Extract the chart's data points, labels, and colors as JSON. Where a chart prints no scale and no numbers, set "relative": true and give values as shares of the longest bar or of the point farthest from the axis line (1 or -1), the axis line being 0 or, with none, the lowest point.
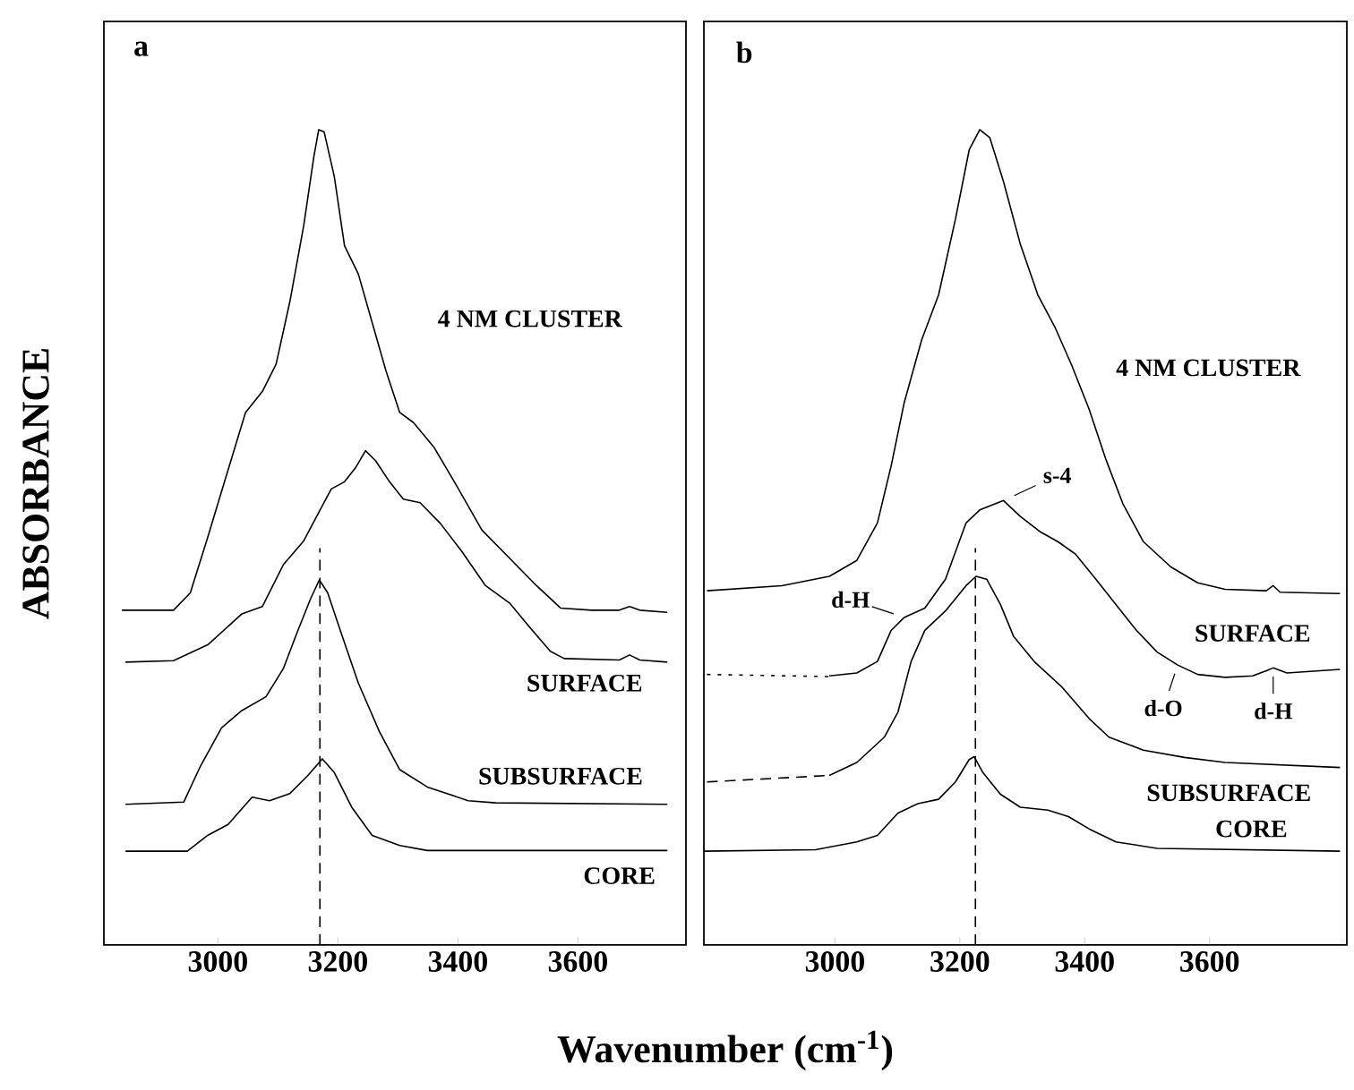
{
  "chart_data": [
    {
      "type": "line",
      "title": "a",
      "xlabel": "Wavenumber (cm$^{-1}$)",
      "ylabel": "ABSORBANCE",
      "relative": true,
      "xlim": [
        2810,
        3780
      ],
      "xticks": [
        3000,
        3200,
        3400,
        3600
      ],
      "ref_lines": [
        {
          "axis": "x",
          "value": 3170,
          "line_style": "dashed"
        }
      ],
      "series": [
        {
          "name": "4 NM CLUSTER",
          "color": "#000000",
          "x": [
            2840,
            2926,
            2954,
            2983,
            3011,
            3046,
            3074,
            3097,
            3120,
            3143,
            3160,
            3168,
            3177,
            3194,
            3211,
            3234,
            3257,
            3280,
            3303,
            3326,
            3360,
            3394,
            3440,
            3486,
            3531,
            3571,
            3623,
            3669,
            3686,
            3703,
            3749
          ],
          "values": [
            0.334,
            0.334,
            0.358,
            0.435,
            0.512,
            0.608,
            0.637,
            0.675,
            0.762,
            0.867,
            0.963,
            1.0,
            0.997,
            0.935,
            0.839,
            0.8,
            0.733,
            0.666,
            0.608,
            0.594,
            0.56,
            0.512,
            0.445,
            0.406,
            0.368,
            0.337,
            0.334,
            0.334,
            0.339,
            0.334,
            0.331
          ]
        },
        {
          "name": "SURFACE",
          "color": "#000000",
          "x": [
            2846,
            2926,
            2983,
            3040,
            3074,
            3109,
            3143,
            3171,
            3189,
            3211,
            3229,
            3246,
            3263,
            3286,
            3309,
            3337,
            3371,
            3406,
            3446,
            3486,
            3520,
            3554,
            3577,
            3669,
            3686,
            3703,
            3749
          ],
          "values": [
            0.262,
            0.264,
            0.286,
            0.329,
            0.339,
            0.397,
            0.43,
            0.474,
            0.502,
            0.512,
            0.531,
            0.555,
            0.541,
            0.512,
            0.488,
            0.483,
            0.454,
            0.416,
            0.368,
            0.344,
            0.31,
            0.277,
            0.267,
            0.265,
            0.272,
            0.265,
            0.262
          ]
        },
        {
          "name": "SUBSURFACE",
          "color": "#000000",
          "x": [
            2846,
            2943,
            2971,
            3006,
            3040,
            3080,
            3109,
            3131,
            3154,
            3169,
            3183,
            3206,
            3234,
            3269,
            3303,
            3349,
            3417,
            3463,
            3749
          ],
          "values": [
            0.065,
            0.068,
            0.118,
            0.171,
            0.195,
            0.214,
            0.253,
            0.301,
            0.349,
            0.376,
            0.358,
            0.301,
            0.233,
            0.166,
            0.113,
            0.089,
            0.07,
            0.067,
            0.065
          ]
        },
        {
          "name": "CORE",
          "color": "#000000",
          "x": [
            2846,
            2949,
            2983,
            3017,
            3057,
            3086,
            3120,
            3149,
            3174,
            3194,
            3223,
            3257,
            3303,
            3349,
            3749
          ],
          "values": [
            0,
            0,
            0.022,
            0.037,
            0.075,
            0.07,
            0.08,
            0.104,
            0.128,
            0.109,
            0.061,
            0.022,
            0.008,
            0.001,
            0.001
          ]
        }
      ]
    },
    {
      "type": "line",
      "title": "b",
      "relative": true,
      "xlim": [
        2790,
        3820
      ],
      "xticks": [
        3000,
        3200,
        3400,
        3600
      ],
      "ref_lines": [
        {
          "axis": "x",
          "value": 3225,
          "line_style": "dashed"
        }
      ],
      "annotations": [
        {
          "text": "s-4",
          "x": 3270,
          "y": 0.486
        },
        {
          "text": "d-H",
          "x": 3111,
          "y": 0.324
        },
        {
          "text": "d-O",
          "x": 3549,
          "y": 0.258
        },
        {
          "text": "d-H",
          "x": 3702,
          "y": 0.254
        }
      ],
      "series": [
        {
          "name": "4 NM CLUSTER",
          "color": "#000000",
          "x": [
            2795,
            2915,
            2991,
            3035,
            3068,
            3090,
            3111,
            3139,
            3166,
            3193,
            3215,
            3232,
            3248,
            3270,
            3297,
            3325,
            3352,
            3379,
            3407,
            3434,
            3461,
            3494,
            3538,
            3581,
            3625,
            3691,
            3702,
            3713,
            3809
          ],
          "values": [
            0.361,
            0.368,
            0.381,
            0.403,
            0.455,
            0.534,
            0.622,
            0.709,
            0.771,
            0.876,
            0.972,
            1.0,
            0.989,
            0.928,
            0.841,
            0.771,
            0.727,
            0.674,
            0.613,
            0.543,
            0.482,
            0.429,
            0.394,
            0.372,
            0.363,
            0.361,
            0.368,
            0.359,
            0.357
          ]
        },
        {
          "name": "SURFACE",
          "color": "#000000",
          "x": [
            2991,
            3035,
            3068,
            3090,
            3111,
            3144,
            3177,
            3210,
            3232,
            3270,
            3297,
            3330,
            3357,
            3385,
            3418,
            3450,
            3483,
            3516,
            3549,
            3581,
            3625,
            3669,
            3691,
            3702,
            3724,
            3809
          ],
          "values": [
            0.243,
            0.247,
            0.263,
            0.306,
            0.324,
            0.337,
            0.377,
            0.455,
            0.473,
            0.486,
            0.464,
            0.442,
            0.429,
            0.412,
            0.377,
            0.342,
            0.306,
            0.276,
            0.258,
            0.245,
            0.241,
            0.243,
            0.25,
            0.254,
            0.247,
            0.252
          ]
        },
        {
          "color": "#000000",
          "line_style": "dotted",
          "x": [
            2795,
            2991
          ],
          "values": [
            0.245,
            0.242
          ]
        },
        {
          "name": "SUBSURFACE",
          "color": "#000000",
          "x": [
            2991,
            3035,
            3079,
            3101,
            3122,
            3144,
            3177,
            3210,
            3226,
            3243,
            3265,
            3286,
            3319,
            3363,
            3407,
            3439,
            3494,
            3560,
            3625,
            3809
          ],
          "values": [
            0.105,
            0.123,
            0.158,
            0.193,
            0.263,
            0.306,
            0.333,
            0.368,
            0.381,
            0.377,
            0.342,
            0.298,
            0.263,
            0.228,
            0.184,
            0.158,
            0.14,
            0.13,
            0.123,
            0.116
          ]
        },
        {
          "color": "#000000",
          "line_style": "dashed",
          "x": [
            2795,
            2991
          ],
          "values": [
            0.096,
            0.105
          ]
        },
        {
          "name": "CORE",
          "color": "#000000",
          "x": [
            2791,
            2969,
            3035,
            3068,
            3101,
            3133,
            3166,
            3193,
            3215,
            3223,
            3237,
            3265,
            3297,
            3341,
            3374,
            3407,
            3450,
            3516,
            3809
          ],
          "values": [
            0,
            0.002,
            0.013,
            0.022,
            0.053,
            0.066,
            0.072,
            0.096,
            0.127,
            0.131,
            0.109,
            0.079,
            0.061,
            0.057,
            0.048,
            0.031,
            0.013,
            0.004,
            0
          ]
        }
      ]
    }
  ]
}
